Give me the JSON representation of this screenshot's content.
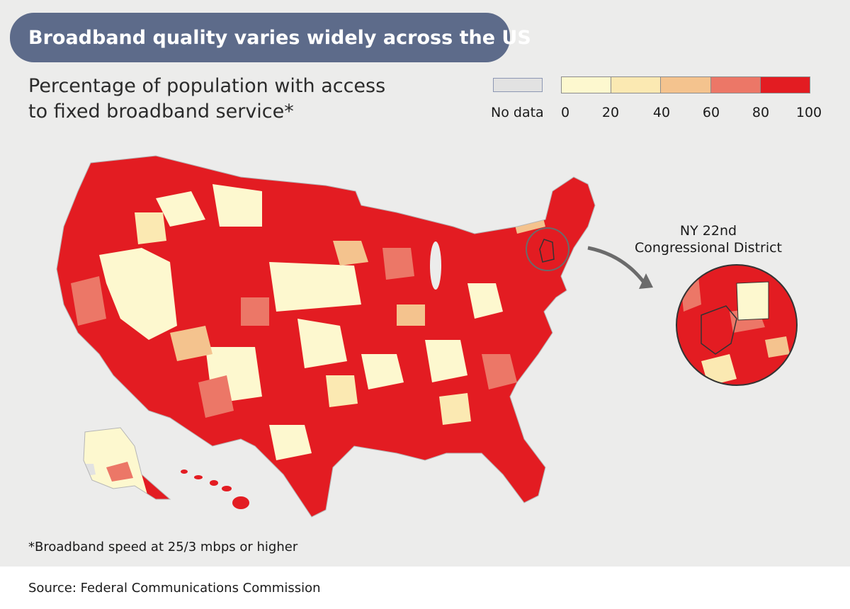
{
  "header": {
    "title": "Broadband quality varies widely across the US",
    "subtitle_line1": "Percentage of population with access",
    "subtitle_line2": "to fixed broadband service*"
  },
  "legend": {
    "nodata_label": "No data",
    "nodata_color": "#e2e2e2",
    "ticks": [
      "0",
      "20",
      "40",
      "60",
      "80",
      "100"
    ],
    "bins": [
      {
        "range": "0-20",
        "color": "#fdf8cf"
      },
      {
        "range": "20-40",
        "color": "#fbe9b2"
      },
      {
        "range": "40-60",
        "color": "#f4c38e"
      },
      {
        "range": "60-80",
        "color": "#ec7767"
      },
      {
        "range": "80-100",
        "color": "#e31c22"
      }
    ]
  },
  "inset": {
    "title_line1": "NY 22nd",
    "title_line2": "Congressional District"
  },
  "footnote": "*Broadband speed at 25/3 mbps or higher",
  "source": "Source: Federal Communications Commission",
  "colors": {
    "panel_background": "#ececeb",
    "title_pill": "#5d6b8a",
    "arrow": "#6b6b6b"
  }
}
